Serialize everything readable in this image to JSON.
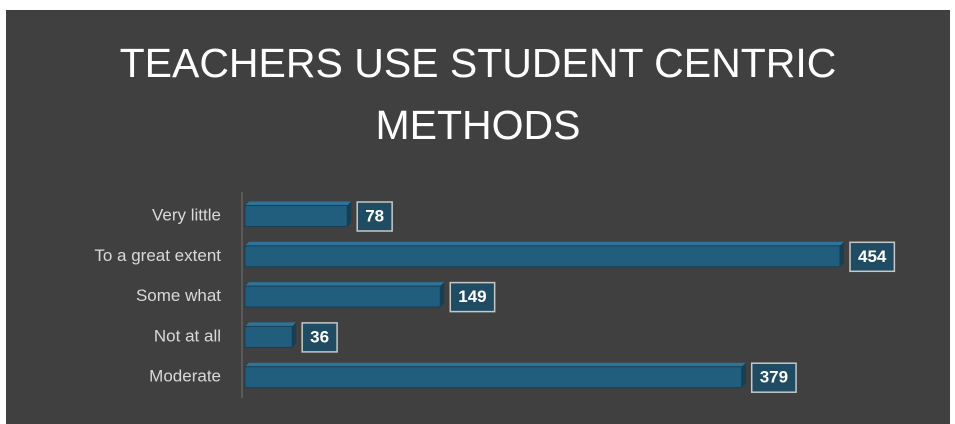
{
  "chart_data": {
    "type": "bar",
    "orientation": "horizontal",
    "title": "TEACHERS USE STUDENT CENTRIC METHODS",
    "categories": [
      "Very little",
      "To a great extent",
      "Some what",
      "Not at all",
      "Moderate"
    ],
    "values": [
      78,
      454,
      149,
      36,
      379
    ],
    "color": "#215d7c"
  }
}
